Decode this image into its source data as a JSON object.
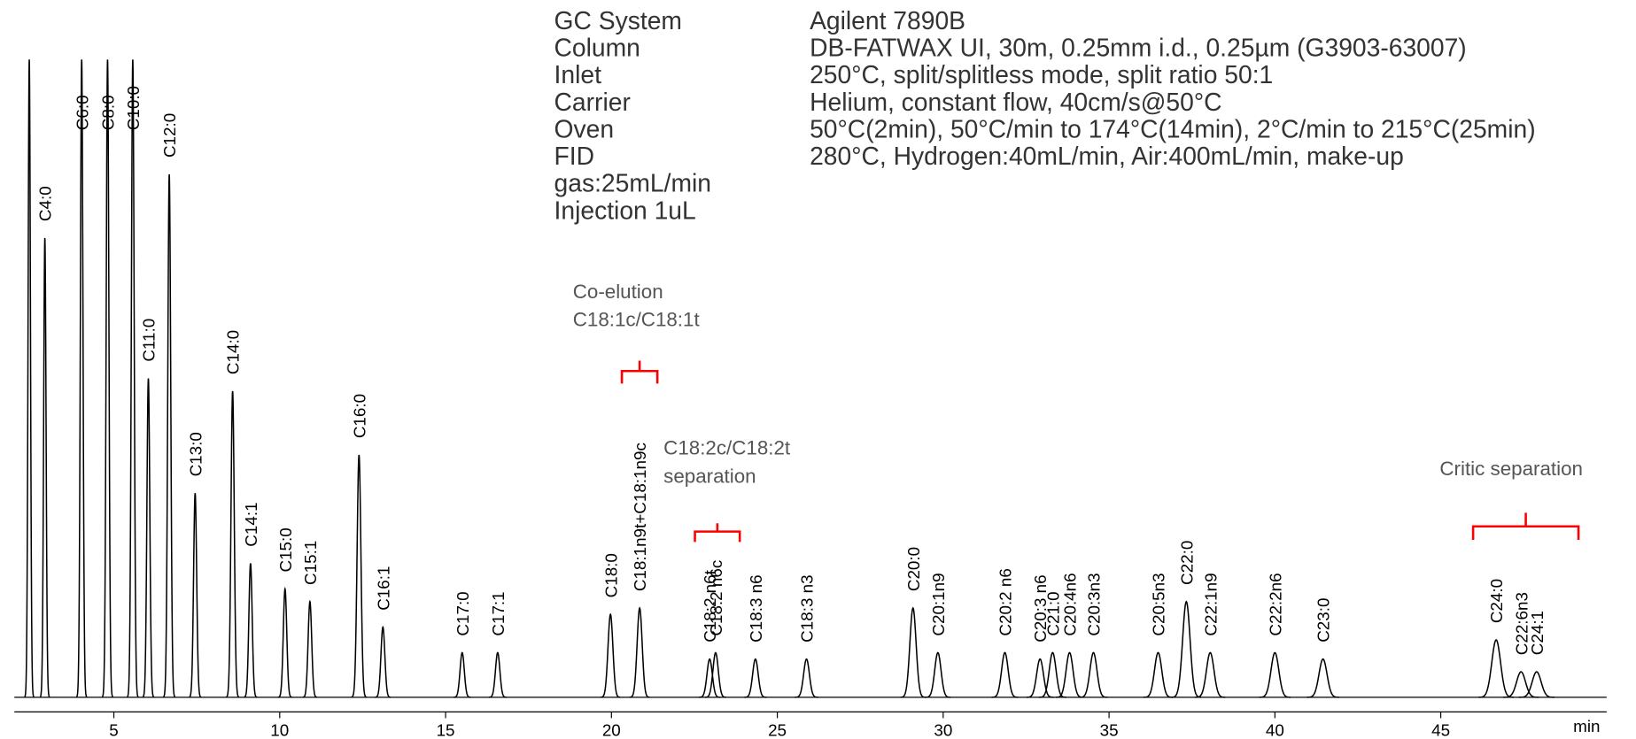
{
  "chart_data": {
    "type": "chromatogram",
    "info": {
      "labels": [
        "GC System",
        "Column",
        "Inlet",
        "Carrier",
        "Oven",
        "FID",
        "gas:25mL/min",
        "Injection   1uL"
      ],
      "values": [
        "Agilent 7890B",
        "DB-FATWAX UI, 30m, 0.25mm i.d., 0.25µm (G3903-63007)",
        "250°C, split/splitless mode, split ratio 50:1",
        "Helium, constant flow, 40cm/s@50°C",
        "50°C(2min), 50°C/min to 174°C(14min), 2°C/min to 215°C(25min)",
        "280°C, Hydrogen:40mL/min, Air:400mL/min, make-up"
      ]
    },
    "peaks": {
      "labels": [
        null,
        "C4:0",
        "C6:0",
        "C8:0",
        "C10:0",
        "C11:0",
        "C12:0",
        "C13:0",
        "C14:0",
        "C14:1",
        "C15:0",
        "C15:1",
        "C16:0",
        "C16:1",
        "C17:0",
        "C17:1",
        "C18:0",
        "C18:1n9t+C18:1n9c",
        "C18:2 n6t",
        "C18:2 n6c",
        "C18:3 n6",
        "C18:3 n3",
        "C20:0",
        "C20:1n9",
        "C20:2 n6",
        "C20:3 n6",
        "C21:0",
        "C20:4n6",
        "C20:3n3",
        "C20:5n3",
        "C22:0",
        "C22:1n9",
        "C22:2n6",
        "C23:0",
        "C24:0",
        "C22:6n3",
        "C24:1"
      ],
      "times": [
        2.45,
        2.92,
        4.03,
        4.81,
        5.57,
        6.04,
        6.67,
        7.45,
        8.58,
        9.12,
        10.16,
        10.91,
        12.39,
        13.11,
        15.5,
        16.57,
        19.97,
        20.85,
        22.96,
        23.14,
        24.34,
        25.88,
        29.09,
        29.84,
        31.86,
        32.92,
        33.3,
        33.81,
        34.53,
        36.48,
        37.33,
        38.05,
        40.0,
        41.45,
        46.67,
        47.42,
        47.89
      ],
      "heights": [
        100,
        72,
        100,
        100,
        100,
        50,
        82,
        32,
        48,
        21,
        17,
        15,
        38,
        11,
        7,
        7,
        13,
        14,
        6,
        7,
        6,
        6,
        14,
        7,
        7,
        6,
        7,
        7,
        7,
        7,
        15,
        7,
        7,
        6,
        9,
        4,
        4
      ]
    },
    "color": "#000000",
    "xlim": [
      2,
      50
    ],
    "xticks": [
      5,
      10,
      15,
      20,
      25,
      30,
      35,
      40,
      45
    ],
    "x_unit": "min",
    "annotations": [
      {
        "lines": [
          "Co-elution",
          "C18:1c/C18:1t"
        ]
      },
      {
        "lines": [
          "C18:2c/C18:2t",
          "separation"
        ]
      },
      {
        "lines": [
          "Critic separation"
        ]
      }
    ],
    "annotation_color": "#555555",
    "brace_color": "#ff0000"
  }
}
